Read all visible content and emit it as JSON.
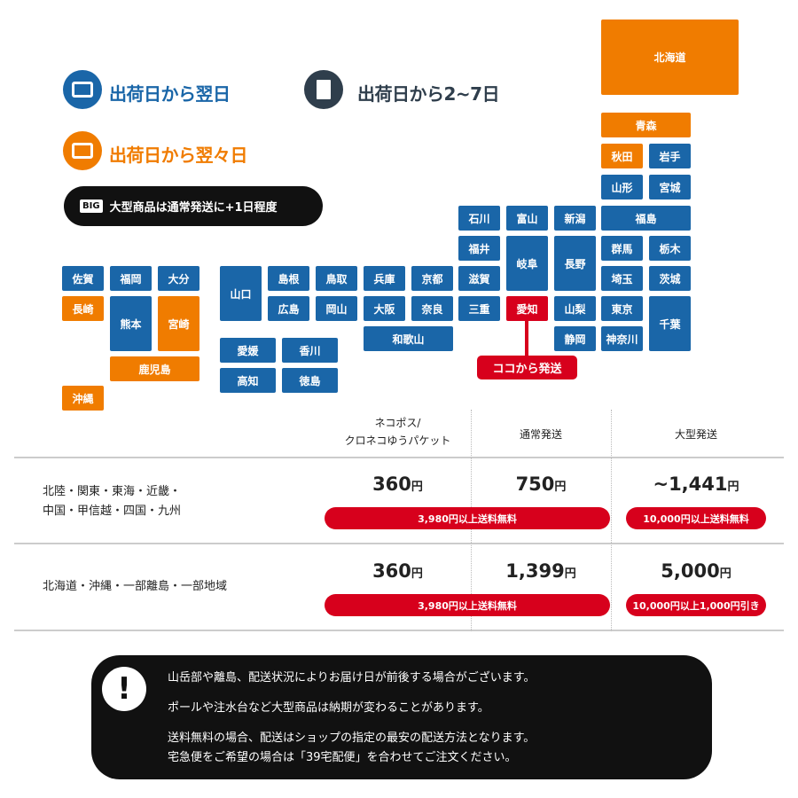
{
  "colors": {
    "next_day": "#1a66a8",
    "day_after_next": "#f07c00",
    "origin": "#d7001c",
    "two_to_seven": "#2f3e4c"
  },
  "legend": {
    "next_day": {
      "label": "出荷日から翌日",
      "icon": "card-icon"
    },
    "day_after_next": {
      "label": "出荷日から翌々日",
      "icon": "card-icon"
    },
    "two_to_seven": {
      "label": "出荷日から2~7日",
      "icon": "envelope-icon"
    },
    "big": {
      "badge": "BIG",
      "label": "大型商品は通常発送に+1日程度"
    }
  },
  "prefectures": [
    {
      "name": "北海道",
      "delivery": "day_after_next"
    },
    {
      "name": "青森",
      "delivery": "day_after_next"
    },
    {
      "name": "秋田",
      "delivery": "day_after_next"
    },
    {
      "name": "岩手",
      "delivery": "next_day"
    },
    {
      "name": "山形",
      "delivery": "next_day"
    },
    {
      "name": "宮城",
      "delivery": "next_day"
    },
    {
      "name": "石川",
      "delivery": "next_day"
    },
    {
      "name": "富山",
      "delivery": "next_day"
    },
    {
      "name": "新潟",
      "delivery": "next_day"
    },
    {
      "name": "福島",
      "delivery": "next_day"
    },
    {
      "name": "福井",
      "delivery": "next_day"
    },
    {
      "name": "岐阜",
      "delivery": "next_day"
    },
    {
      "name": "長野",
      "delivery": "next_day"
    },
    {
      "name": "群馬",
      "delivery": "next_day"
    },
    {
      "name": "栃木",
      "delivery": "next_day"
    },
    {
      "name": "滋賀",
      "delivery": "next_day"
    },
    {
      "name": "埼玉",
      "delivery": "next_day"
    },
    {
      "name": "茨城",
      "delivery": "next_day"
    },
    {
      "name": "佐賀",
      "delivery": "next_day"
    },
    {
      "name": "福岡",
      "delivery": "next_day"
    },
    {
      "name": "大分",
      "delivery": "next_day"
    },
    {
      "name": "山口",
      "delivery": "next_day"
    },
    {
      "name": "島根",
      "delivery": "next_day"
    },
    {
      "name": "鳥取",
      "delivery": "next_day"
    },
    {
      "name": "兵庫",
      "delivery": "next_day"
    },
    {
      "name": "京都",
      "delivery": "next_day"
    },
    {
      "name": "長崎",
      "delivery": "day_after_next"
    },
    {
      "name": "熊本",
      "delivery": "next_day"
    },
    {
      "name": "宮崎",
      "delivery": "day_after_next"
    },
    {
      "name": "広島",
      "delivery": "next_day"
    },
    {
      "name": "岡山",
      "delivery": "next_day"
    },
    {
      "name": "大阪",
      "delivery": "next_day"
    },
    {
      "name": "奈良",
      "delivery": "next_day"
    },
    {
      "name": "三重",
      "delivery": "next_day"
    },
    {
      "name": "愛知",
      "delivery": "origin"
    },
    {
      "name": "山梨",
      "delivery": "next_day"
    },
    {
      "name": "東京",
      "delivery": "next_day"
    },
    {
      "name": "千葉",
      "delivery": "next_day"
    },
    {
      "name": "和歌山",
      "delivery": "next_day"
    },
    {
      "name": "静岡",
      "delivery": "next_day"
    },
    {
      "name": "神奈川",
      "delivery": "next_day"
    },
    {
      "name": "鹿児島",
      "delivery": "day_after_next"
    },
    {
      "name": "愛媛",
      "delivery": "next_day"
    },
    {
      "name": "香川",
      "delivery": "next_day"
    },
    {
      "name": "高知",
      "delivery": "next_day"
    },
    {
      "name": "徳島",
      "delivery": "next_day"
    },
    {
      "name": "沖縄",
      "delivery": "day_after_next"
    }
  ],
  "origin_label": "ココから発送",
  "table": {
    "headers": [
      "ネコポス/\nクロネコゆうパケット",
      "通常発送",
      "大型発送"
    ],
    "rows": [
      {
        "region": "北陸・関東・東海・近畿・\n中国・甲信越・四国・九州",
        "prices": [
          "360",
          "750",
          "~1,441"
        ],
        "unit": "円",
        "notes": [
          "3,980円以上送料無料",
          "10,000円以上送料無料"
        ]
      },
      {
        "region": "北海道・沖縄・一部離島・一部地域",
        "prices": [
          "360",
          "1,399",
          "5,000"
        ],
        "unit": "円",
        "notes": [
          "3,980円以上送料無料",
          "10,000円以上1,000円引き"
        ]
      }
    ]
  },
  "notice": {
    "icon": "exclamation-icon",
    "lines": [
      "山岳部や離島、配送状況によりお届け日が前後する場合がございます。",
      "ポールや注水台など大型商品は納期が変わることがあります。",
      "送料無料の場合、配送はショップの指定の最安の配送方法となります。",
      "宅急便をご希望の場合は「39宅配便」を合わせてご注文ください。"
    ]
  }
}
